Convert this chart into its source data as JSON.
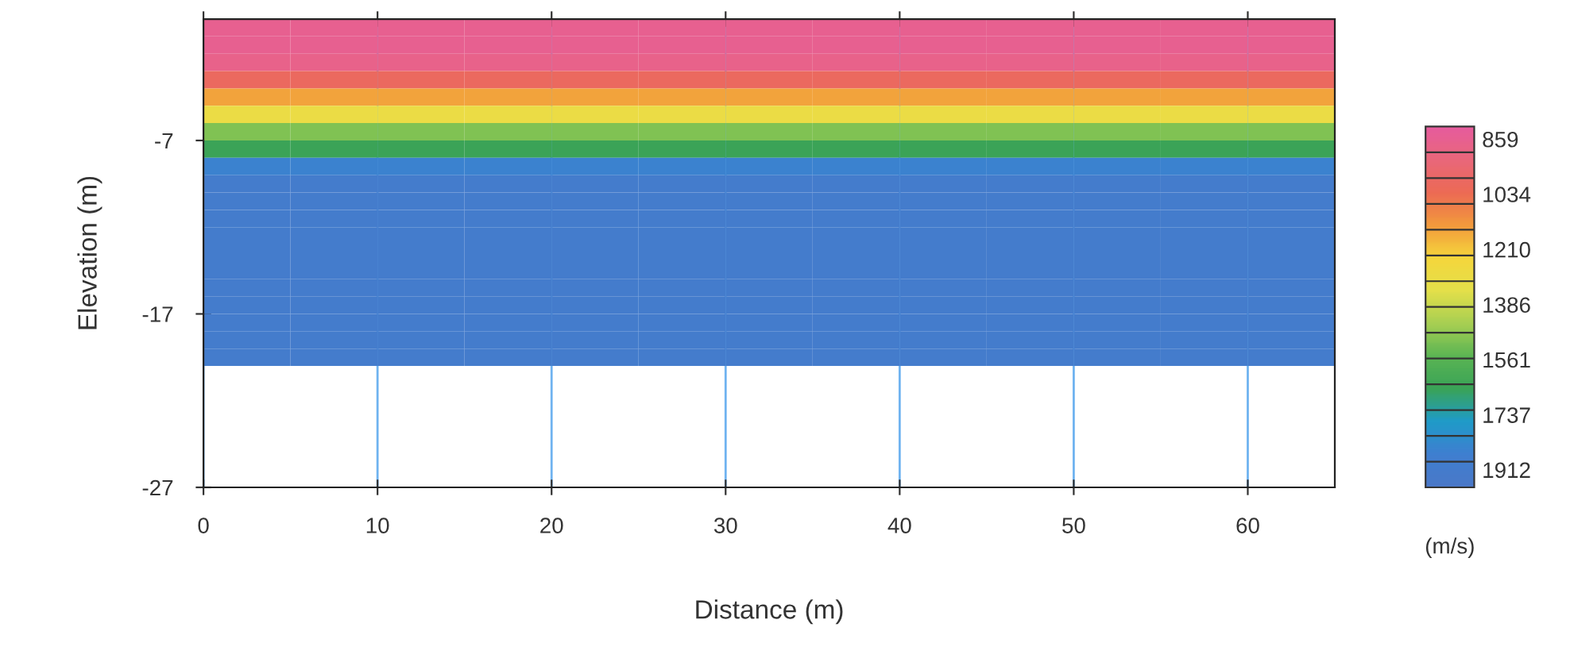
{
  "chart_data": {
    "type": "heatmap",
    "xlabel": "Distance (m)",
    "ylabel": "Elevation (m)",
    "clabel": "(m/s)",
    "x": [
      2.5,
      7.5,
      12.5,
      17.5,
      22.5,
      27.5,
      32.5,
      37.5,
      42.5,
      47.5,
      52.5,
      57.5,
      62.5
    ],
    "y": [
      -0.5,
      -1.5,
      -2.5,
      -3.5,
      -4.5,
      -5.5,
      -6.5,
      -7.5,
      -8.5,
      -9.5,
      -10.5,
      -11.5,
      -12.5,
      -13.5,
      -14.5,
      -15.5,
      -16.5,
      -17.5,
      -18.5,
      -19.5
    ],
    "cells": [
      [
        860,
        860,
        860,
        860,
        860,
        860,
        860,
        860,
        860,
        860,
        860,
        860,
        860
      ],
      [
        860,
        860,
        860,
        860,
        860,
        860,
        860,
        860,
        860,
        860,
        860,
        860,
        860
      ],
      [
        880,
        880,
        880,
        880,
        880,
        880,
        880,
        880,
        880,
        880,
        880,
        880,
        880
      ],
      [
        1000,
        1000,
        1000,
        1000,
        1000,
        1000,
        1000,
        1000,
        1000,
        1000,
        1000,
        1000,
        1000
      ],
      [
        1150,
        1150,
        1150,
        1150,
        1150,
        1150,
        1150,
        1150,
        1150,
        1150,
        1150,
        1150,
        1150
      ],
      [
        1300,
        1300,
        1300,
        1300,
        1300,
        1300,
        1300,
        1300,
        1300,
        1300,
        1300,
        1300,
        1300
      ],
      [
        1500,
        1500,
        1500,
        1500,
        1500,
        1500,
        1500,
        1500,
        1500,
        1500,
        1500,
        1500,
        1500
      ],
      [
        1650,
        1650,
        1650,
        1650,
        1650,
        1650,
        1650,
        1650,
        1650,
        1650,
        1650,
        1650,
        1650
      ],
      [
        1850,
        1850,
        1850,
        1850,
        1850,
        1850,
        1850,
        1850,
        1850,
        1850,
        1850,
        1850,
        1850
      ],
      [
        1912,
        1912,
        1912,
        1912,
        1912,
        1912,
        1912,
        1912,
        1912,
        1912,
        1912,
        1912,
        1912
      ],
      [
        1912,
        1912,
        1912,
        1912,
        1912,
        1912,
        1912,
        1912,
        1912,
        1912,
        1912,
        1912,
        1912
      ],
      [
        1912,
        1912,
        1912,
        1912,
        1912,
        1912,
        1912,
        1912,
        1912,
        1912,
        1912,
        1912,
        1912
      ],
      [
        1912,
        1912,
        1912,
        1912,
        1912,
        1912,
        1912,
        1912,
        1912,
        1912,
        1912,
        1912,
        1912
      ],
      [
        1912,
        1912,
        1912,
        1912,
        1912,
        1912,
        1912,
        1912,
        1912,
        1912,
        1912,
        1912,
        1912
      ],
      [
        1912,
        1912,
        1912,
        1912,
        1912,
        1912,
        1912,
        1912,
        1912,
        1912,
        1912,
        1912,
        1912
      ],
      [
        1912,
        1912,
        1912,
        1912,
        1912,
        1912,
        1912,
        1912,
        1912,
        1912,
        1912,
        1912,
        1912
      ],
      [
        1912,
        1912,
        1912,
        1912,
        1912,
        1912,
        1912,
        1912,
        1912,
        1912,
        1912,
        1912,
        1912
      ],
      [
        1912,
        1912,
        1912,
        1912,
        1912,
        1912,
        1912,
        1912,
        1912,
        1912,
        1912,
        1912,
        1912
      ],
      [
        1912,
        1912,
        1912,
        1912,
        1912,
        1912,
        1912,
        1912,
        1912,
        1912,
        1912,
        1912,
        1912
      ],
      [
        1912,
        1912,
        1912,
        1912,
        1912,
        1912,
        1912,
        1912,
        1912,
        1912,
        1912,
        1912,
        1912
      ]
    ],
    "xlim": [
      0,
      65
    ],
    "ylim": [
      -27,
      0
    ],
    "xticks": [
      0,
      10,
      20,
      30,
      40,
      50,
      60
    ],
    "yticks": [
      {
        "value": -7,
        "label": "-7"
      },
      {
        "value": -17,
        "label": "-17"
      },
      {
        "value": -27,
        "label": "-27"
      }
    ],
    "clim": [
      819,
      1968
    ],
    "cticks": [
      859,
      1034,
      1210,
      1386,
      1561,
      1737,
      1912
    ],
    "grid": "x"
  }
}
